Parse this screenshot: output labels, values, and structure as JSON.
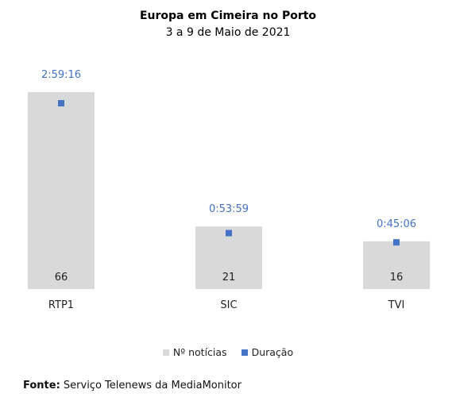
{
  "chart_data": {
    "type": "bar",
    "title": "Europa em Cimeira no Porto",
    "subtitle": "3 a 9 de Maio de 2021",
    "categories": [
      "RTP1",
      "SIC",
      "TVI"
    ],
    "series": [
      {
        "name": "Nº notícias",
        "values": [
          66,
          21,
          16
        ],
        "color": "#d9d9d9"
      },
      {
        "name": "Duração",
        "values": [
          "2:59:16",
          "0:53:59",
          "0:45:06"
        ],
        "seconds": [
          10756,
          3239,
          2706
        ],
        "color": "#4472c4"
      }
    ],
    "label_color": "#4472c4",
    "legend_position": "bottom",
    "grid": false
  },
  "source": {
    "label": "Fonte:",
    "text": "Serviço Telenews da MediaMonitor"
  }
}
